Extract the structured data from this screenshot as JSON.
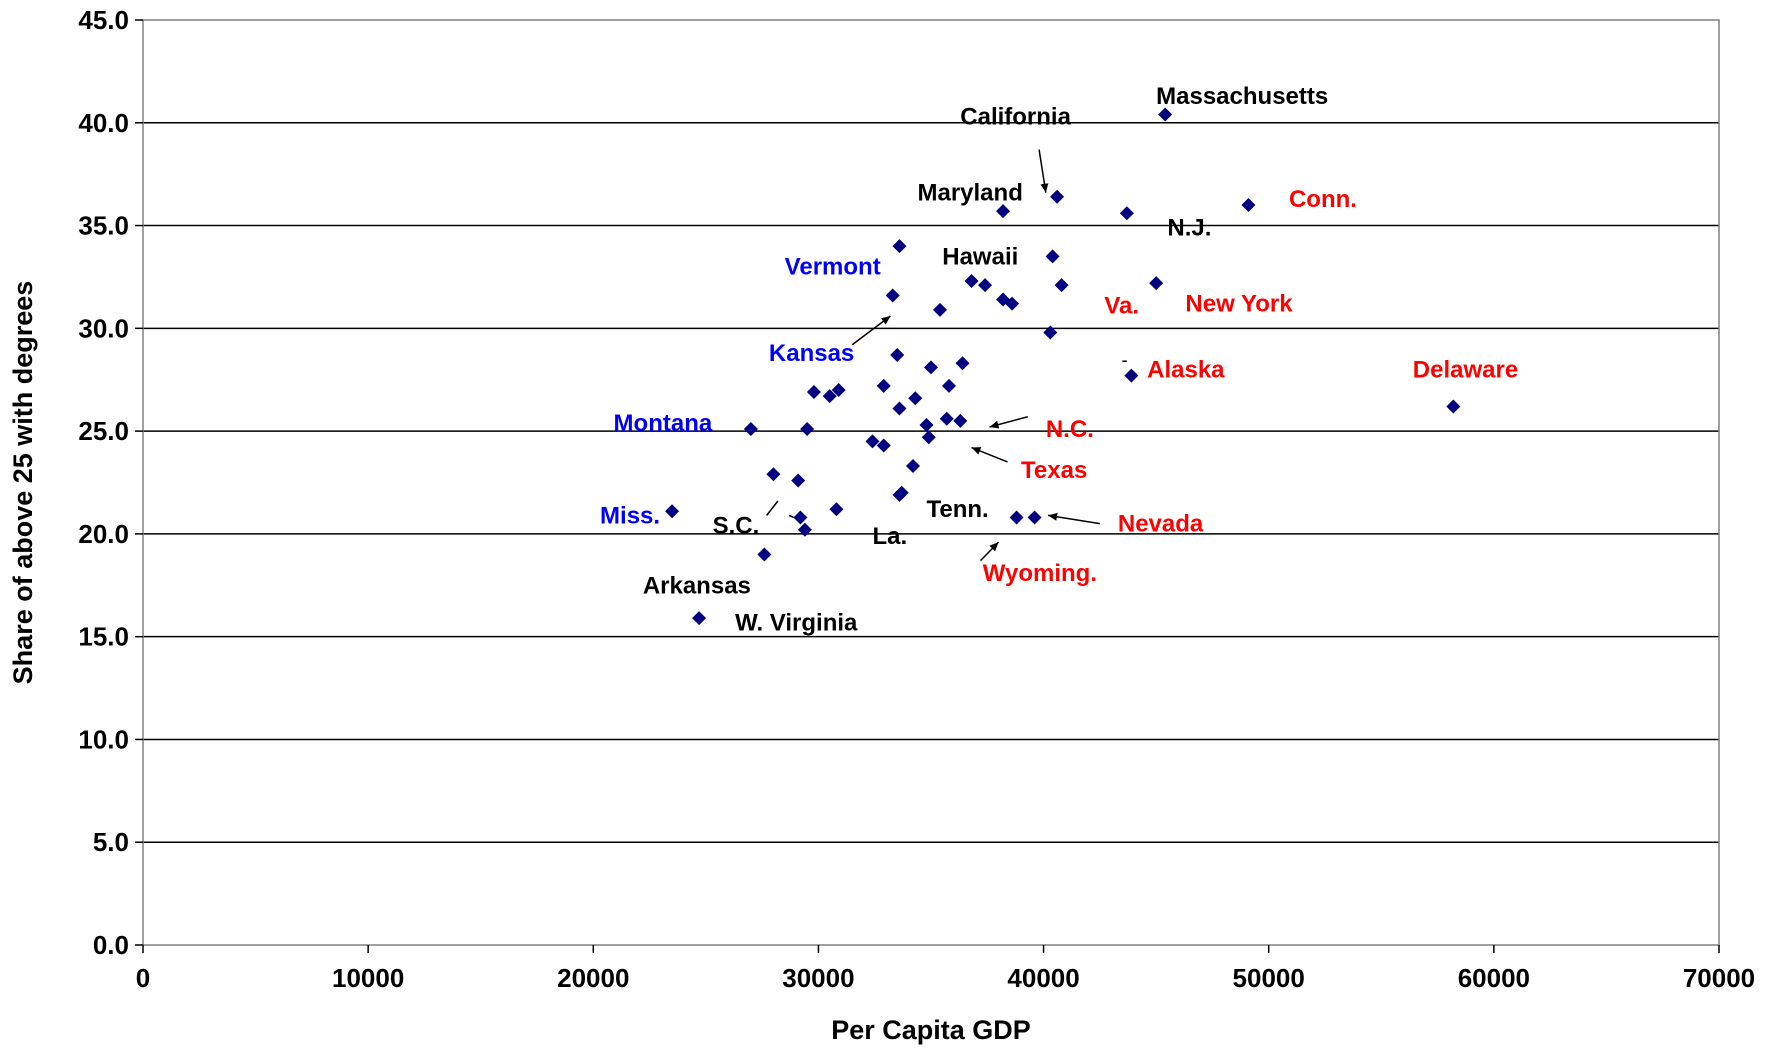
{
  "chart_data": {
    "type": "scatter",
    "title": "",
    "xlabel": "Per Capita GDP",
    "ylabel": "Share of above 25 with degrees",
    "xlim": [
      0,
      70000
    ],
    "ylim": [
      0,
      45
    ],
    "xticks": [
      0,
      10000,
      20000,
      30000,
      40000,
      50000,
      60000,
      70000
    ],
    "xtick_labels": [
      "0",
      "10000",
      "20000",
      "30000",
      "40000",
      "50000",
      "60000",
      "70000"
    ],
    "yticks": [
      0,
      5,
      10,
      15,
      20,
      25,
      30,
      35,
      40,
      45
    ],
    "ytick_labels": [
      "0.0",
      "5.0",
      "10.0",
      "15.0",
      "20.0",
      "25.0",
      "30.0",
      "35.0",
      "40.0",
      "45.0"
    ],
    "grid": "horizontal",
    "marker": "diamond",
    "marker_color": "#000080",
    "annotation_colors": {
      "black": "#000000",
      "red": "#ff0000",
      "blue": "#0000ff"
    },
    "points": [
      {
        "x": 45400,
        "y": 40.4
      },
      {
        "x": 40600,
        "y": 36.4
      },
      {
        "x": 38200,
        "y": 35.7
      },
      {
        "x": 43700,
        "y": 35.6
      },
      {
        "x": 49100,
        "y": 36.0
      },
      {
        "x": 33600,
        "y": 34.0
      },
      {
        "x": 40400,
        "y": 33.5
      },
      {
        "x": 36800,
        "y": 32.3
      },
      {
        "x": 37400,
        "y": 32.1
      },
      {
        "x": 40800,
        "y": 32.1
      },
      {
        "x": 45000,
        "y": 32.2
      },
      {
        "x": 33300,
        "y": 31.6
      },
      {
        "x": 38200,
        "y": 31.4
      },
      {
        "x": 38600,
        "y": 31.2
      },
      {
        "x": 35400,
        "y": 30.9
      },
      {
        "x": 40300,
        "y": 29.8
      },
      {
        "x": 33500,
        "y": 28.7
      },
      {
        "x": 35000,
        "y": 28.1
      },
      {
        "x": 36400,
        "y": 28.3
      },
      {
        "x": 43900,
        "y": 27.7
      },
      {
        "x": 58200,
        "y": 26.2
      },
      {
        "x": 32900,
        "y": 27.2
      },
      {
        "x": 35800,
        "y": 27.2
      },
      {
        "x": 29800,
        "y": 26.9
      },
      {
        "x": 30500,
        "y": 26.7
      },
      {
        "x": 30900,
        "y": 27.0
      },
      {
        "x": 34300,
        "y": 26.6
      },
      {
        "x": 33600,
        "y": 26.1
      },
      {
        "x": 35700,
        "y": 25.6
      },
      {
        "x": 36300,
        "y": 25.5
      },
      {
        "x": 34800,
        "y": 25.3
      },
      {
        "x": 34900,
        "y": 24.7
      },
      {
        "x": 27000,
        "y": 25.1
      },
      {
        "x": 29500,
        "y": 25.1
      },
      {
        "x": 32400,
        "y": 24.5
      },
      {
        "x": 32900,
        "y": 24.3
      },
      {
        "x": 34200,
        "y": 23.3
      },
      {
        "x": 28000,
        "y": 22.9
      },
      {
        "x": 29100,
        "y": 22.6
      },
      {
        "x": 33700,
        "y": 22.0
      },
      {
        "x": 33600,
        "y": 21.9
      },
      {
        "x": 23500,
        "y": 21.1
      },
      {
        "x": 30800,
        "y": 21.2
      },
      {
        "x": 29200,
        "y": 20.8
      },
      {
        "x": 29400,
        "y": 20.2
      },
      {
        "x": 38800,
        "y": 20.8
      },
      {
        "x": 39600,
        "y": 20.8
      },
      {
        "x": 27600,
        "y": 19.0
      },
      {
        "x": 24700,
        "y": 15.9
      }
    ],
    "annotations": [
      {
        "text": "Massachusetts",
        "x": 45000,
        "y": 41.3,
        "color": "black",
        "anchor": "start"
      },
      {
        "text": "California",
        "x": 36300,
        "y": 40.3,
        "color": "black",
        "anchor": "start"
      },
      {
        "text": "Maryland",
        "x": 34400,
        "y": 36.6,
        "color": "black",
        "anchor": "start"
      },
      {
        "text": "Conn.",
        "x": 50900,
        "y": 36.3,
        "color": "red",
        "anchor": "start"
      },
      {
        "text": "N.J.",
        "x": 45500,
        "y": 34.9,
        "color": "black",
        "anchor": "start"
      },
      {
        "text": "Vermont",
        "x": 28500,
        "y": 33.0,
        "color": "blue",
        "anchor": "start"
      },
      {
        "text": "Hawaii",
        "x": 35500,
        "y": 33.5,
        "color": "black",
        "anchor": "start"
      },
      {
        "text": "Va.",
        "x": 42700,
        "y": 31.1,
        "color": "red",
        "anchor": "start"
      },
      {
        "text": "New York",
        "x": 46300,
        "y": 31.2,
        "color": "red",
        "anchor": "start"
      },
      {
        "text": "Kansas",
        "x": 27800,
        "y": 28.8,
        "color": "blue",
        "anchor": "start"
      },
      {
        "text": "Alaska",
        "x": 44600,
        "y": 28.0,
        "color": "red",
        "anchor": "start"
      },
      {
        "text": "Delaware",
        "x": 56400,
        "y": 28.0,
        "color": "red",
        "anchor": "start"
      },
      {
        "text": "Montana",
        "x": 20900,
        "y": 25.4,
        "color": "blue",
        "anchor": "start"
      },
      {
        "text": "N.C.",
        "x": 40100,
        "y": 25.1,
        "color": "red",
        "anchor": "start"
      },
      {
        "text": "Texas",
        "x": 39000,
        "y": 23.1,
        "color": "red",
        "anchor": "start"
      },
      {
        "text": "Miss.",
        "x": 20300,
        "y": 20.9,
        "color": "blue",
        "anchor": "start"
      },
      {
        "text": "S.C.",
        "x": 25300,
        "y": 20.4,
        "color": "black",
        "anchor": "start"
      },
      {
        "text": "Tenn.",
        "x": 34800,
        "y": 21.2,
        "color": "black",
        "anchor": "start"
      },
      {
        "text": "La.",
        "x": 32400,
        "y": 19.9,
        "color": "black",
        "anchor": "start"
      },
      {
        "text": "Nevada",
        "x": 43300,
        "y": 20.5,
        "color": "red",
        "anchor": "start"
      },
      {
        "text": "Wyoming.",
        "x": 37300,
        "y": 18.1,
        "color": "red",
        "anchor": "start"
      },
      {
        "text": "Arkansas",
        "x": 22200,
        "y": 17.5,
        "color": "black",
        "anchor": "start"
      },
      {
        "text": "W. Virginia",
        "x": 26300,
        "y": 15.7,
        "color": "black",
        "anchor": "start"
      }
    ],
    "arrows": [
      {
        "from": [
          39800,
          38.7
        ],
        "to": [
          40100,
          36.6
        ]
      },
      {
        "from": [
          31500,
          29.2
        ],
        "to": [
          33200,
          30.6
        ]
      },
      {
        "from": [
          39300,
          25.7
        ],
        "to": [
          37600,
          25.2
        ]
      },
      {
        "from": [
          38400,
          23.5
        ],
        "to": [
          36800,
          24.2
        ]
      },
      {
        "from": [
          42500,
          20.5
        ],
        "to": [
          40200,
          20.9
        ]
      },
      {
        "from": [
          37200,
          18.7
        ],
        "to": [
          38000,
          19.6
        ]
      }
    ],
    "marks": [
      {
        "from": [
          27700,
          20.9
        ],
        "to": [
          28200,
          21.6
        ]
      },
      {
        "from": [
          28700,
          20.9
        ],
        "to": [
          28900,
          20.8
        ]
      },
      {
        "from": [
          43500,
          28.4
        ],
        "to": [
          43700,
          28.4
        ]
      }
    ]
  }
}
